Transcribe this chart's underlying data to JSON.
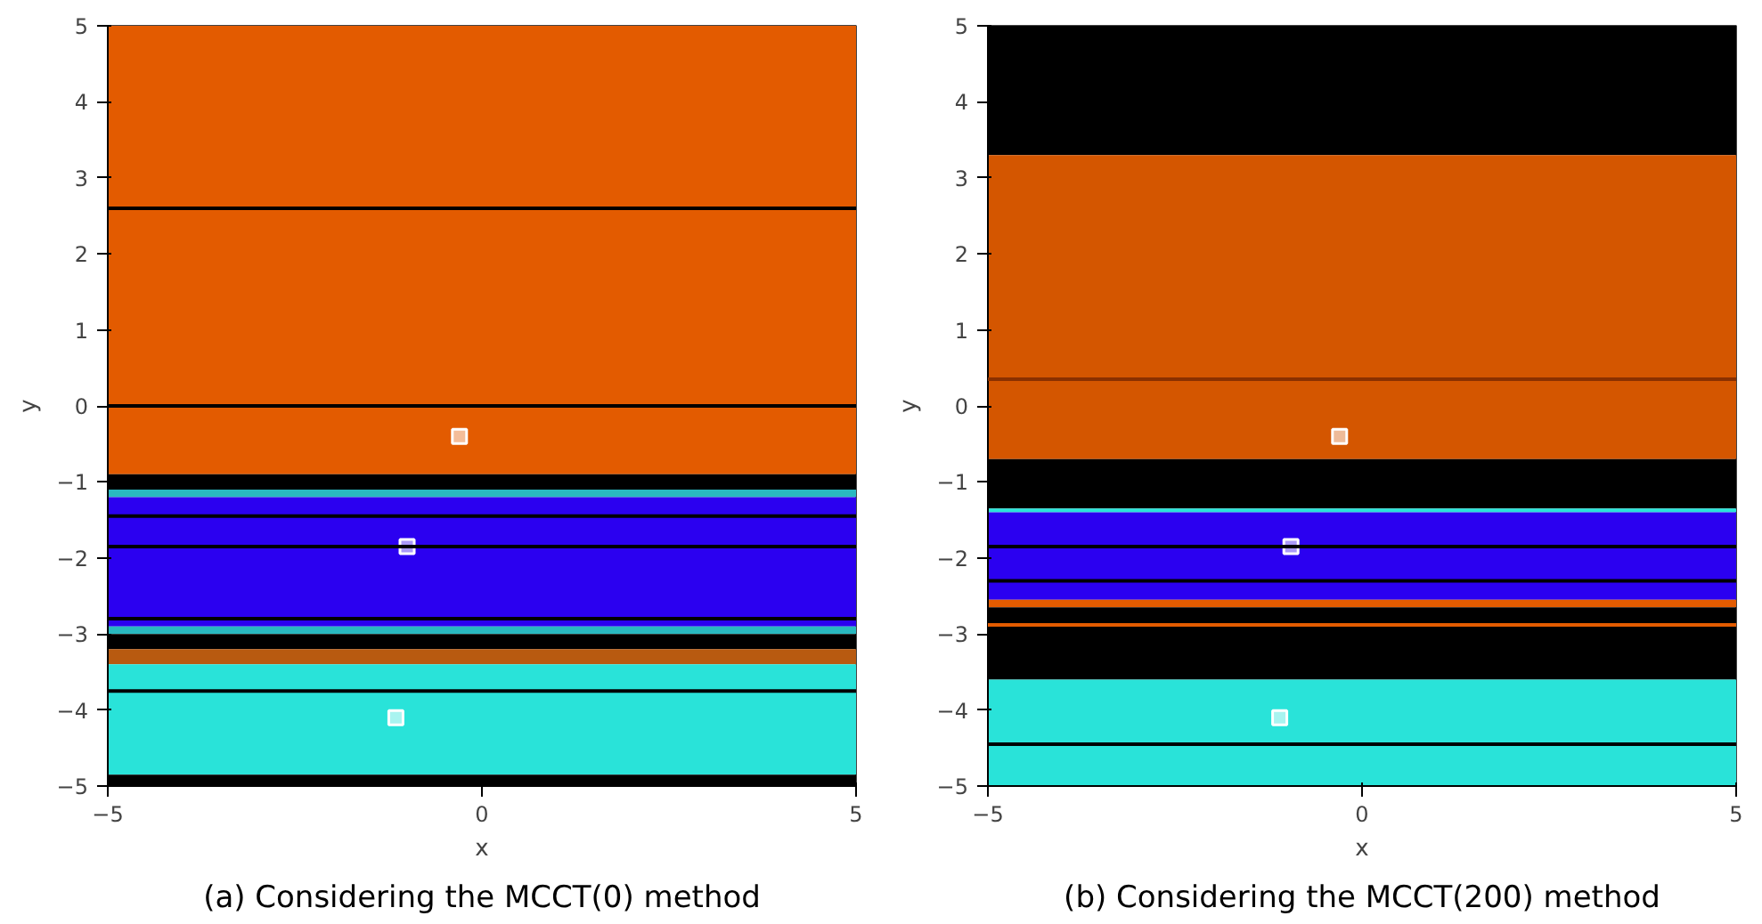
{
  "chart_data": [
    {
      "type": "scatter",
      "title": "(a) Considering the MCCT(0) method",
      "xlabel": "x",
      "ylabel": "y",
      "xlim": [
        -5,
        5
      ],
      "ylim": [
        -5,
        5
      ],
      "xticks": [
        -5,
        0,
        5
      ],
      "yticks": [
        -5,
        -4,
        -3,
        -2,
        -1,
        0,
        1,
        2,
        3,
        4,
        5
      ],
      "grid": false,
      "marker": "square",
      "x": [
        -0.3,
        -1.0,
        -1.15
      ],
      "series": [
        {
          "color": "#ffffff",
          "values": [
            -0.4,
            -1.85,
            -4.1
          ]
        }
      ],
      "bands": [
        {
          "axis": "y",
          "from": -0.9,
          "to": 5,
          "color": "#e35b00"
        },
        {
          "axis": "y",
          "from": -1.1,
          "to": -0.9,
          "color": "#000000"
        },
        {
          "axis": "y",
          "from": -1.2,
          "to": -1.1,
          "color": "#29b8c0"
        },
        {
          "axis": "y",
          "from": -2.9,
          "to": -1.2,
          "color": "#2b00f0"
        },
        {
          "axis": "y",
          "from": -3.0,
          "to": -2.9,
          "color": "#29b8c0"
        },
        {
          "axis": "y",
          "from": -3.2,
          "to": -3.0,
          "color": "#000000"
        },
        {
          "axis": "y",
          "from": -3.4,
          "to": -3.2,
          "color": "#b85a10"
        },
        {
          "axis": "y",
          "from": -4.85,
          "to": -3.4,
          "color": "#29e3d9"
        },
        {
          "axis": "y",
          "from": -5,
          "to": -4.85,
          "color": "#000000"
        }
      ],
      "ref_lines": [
        {
          "axis": "y",
          "value": 2.6,
          "color": "#000000"
        },
        {
          "axis": "y",
          "value": 0,
          "color": "#000000"
        },
        {
          "axis": "y",
          "value": -1.45,
          "color": "#000000"
        },
        {
          "axis": "y",
          "value": -1.85,
          "color": "#000000"
        },
        {
          "axis": "y",
          "value": -2.8,
          "color": "#000000"
        },
        {
          "axis": "y",
          "value": -3.75,
          "color": "#000000"
        }
      ]
    },
    {
      "type": "scatter",
      "title": "(b) Considering the MCCT(200) method",
      "xlabel": "x",
      "ylabel": "y",
      "xlim": [
        -5,
        5
      ],
      "ylim": [
        -5,
        5
      ],
      "xticks": [
        -5,
        0,
        5
      ],
      "yticks": [
        -5,
        -4,
        -3,
        -2,
        -1,
        0,
        1,
        2,
        3,
        4,
        5
      ],
      "grid": false,
      "marker": "square",
      "x": [
        -0.3,
        -0.95,
        -1.1
      ],
      "series": [
        {
          "color": "#ffffff",
          "values": [
            -0.4,
            -1.85,
            -4.1
          ]
        }
      ],
      "bands": [
        {
          "axis": "y",
          "from": 3.3,
          "to": 5,
          "color": "#000000"
        },
        {
          "axis": "y",
          "from": -0.7,
          "to": 3.3,
          "color": "#d45600"
        },
        {
          "axis": "y",
          "from": -1.35,
          "to": -0.7,
          "color": "#000000"
        },
        {
          "axis": "y",
          "from": -1.4,
          "to": -1.35,
          "color": "#29e3d9"
        },
        {
          "axis": "y",
          "from": -2.55,
          "to": -1.4,
          "color": "#2b00f0"
        },
        {
          "axis": "y",
          "from": -2.65,
          "to": -2.55,
          "color": "#e35b00"
        },
        {
          "axis": "y",
          "from": -3.6,
          "to": -2.65,
          "color": "#000000"
        },
        {
          "axis": "y",
          "from": -5,
          "to": -3.6,
          "color": "#29e3d9"
        }
      ],
      "ref_lines": [
        {
          "axis": "y",
          "value": 0.35,
          "color": "#8a3000"
        },
        {
          "axis": "y",
          "value": -1.85,
          "color": "#000000"
        },
        {
          "axis": "y",
          "value": -2.3,
          "color": "#000000"
        },
        {
          "axis": "y",
          "value": -2.88,
          "color": "#e35b00"
        },
        {
          "axis": "y",
          "value": -4.45,
          "color": "#000000"
        }
      ]
    }
  ]
}
